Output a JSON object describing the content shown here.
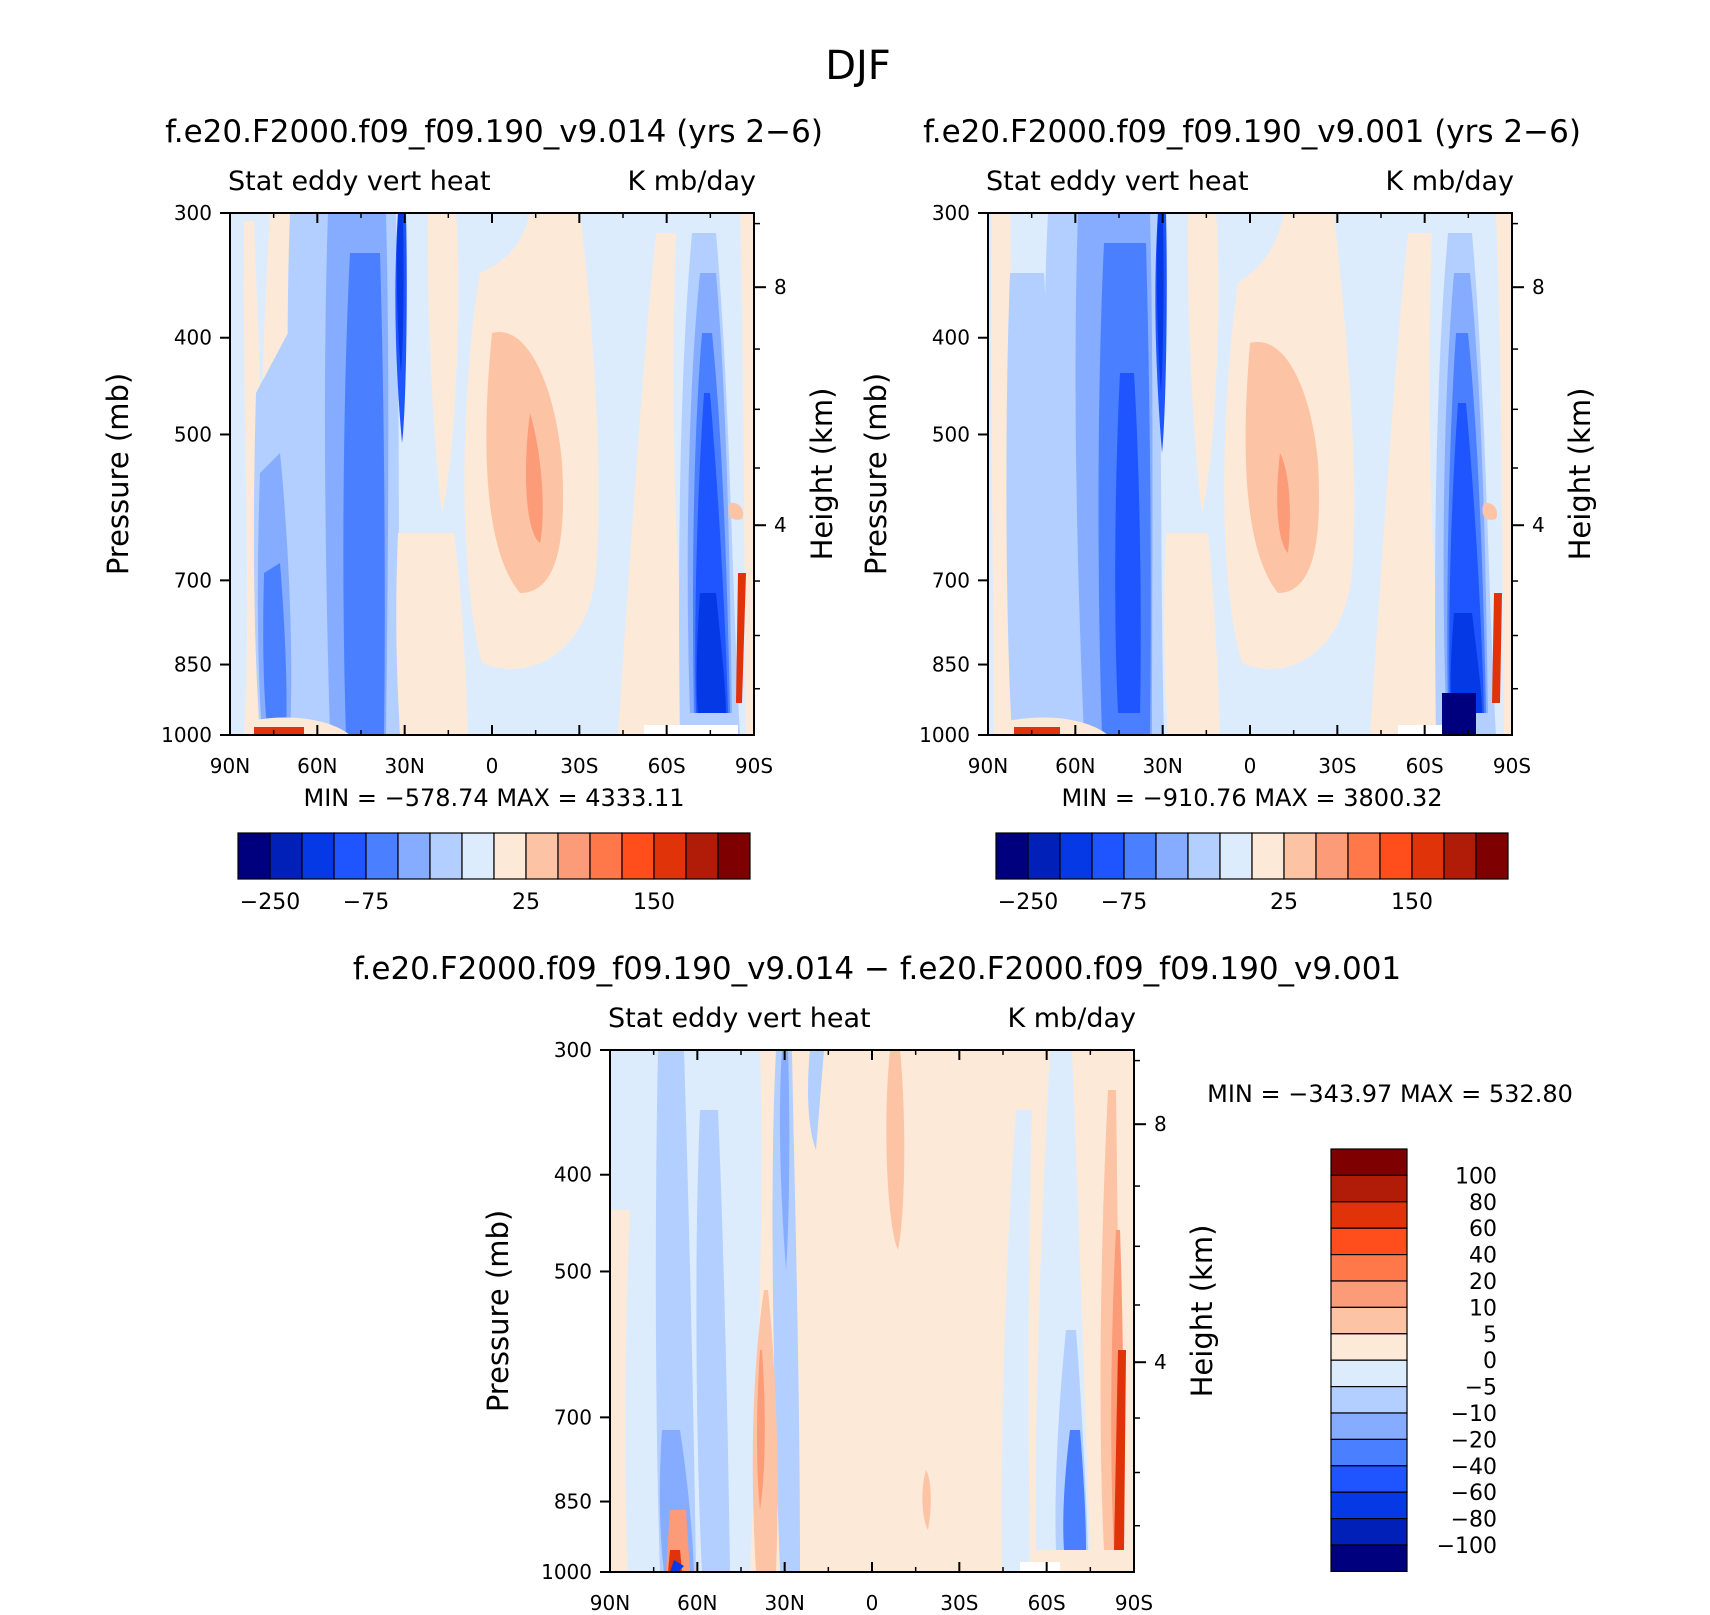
{
  "figure_title": "DJF",
  "colors": {
    "abs_colorbar": [
      "#00007f",
      "#0020b8",
      "#0539e6",
      "#1f55ff",
      "#4a80ff",
      "#86acff",
      "#b3cfff",
      "#ddecfc",
      "#fde9d8",
      "#fcc4a5",
      "#fb9b78",
      "#ff784a",
      "#ff4d1c",
      "#e1330a",
      "#b01c08",
      "#7f0000"
    ],
    "diff_colorbar": [
      "#00007f",
      "#0020b8",
      "#0539e6",
      "#1f55ff",
      "#4a80ff",
      "#86acff",
      "#b3cfff",
      "#ddecfc",
      "#fde9d8",
      "#fcc4a5",
      "#fb9b78",
      "#ff784a",
      "#ff4d1c",
      "#e1330a",
      "#b01c08",
      "#7f0000"
    ]
  },
  "panels": [
    {
      "id": "test",
      "title": "f.e20.F2000.f09_f09.190_v9.014 (yrs 2−6)",
      "left_label": "Stat eddy vert heat",
      "right_label": "K mb/day",
      "ylabel_left": "Pressure (mb)",
      "ylabel_right": "Height (km)",
      "minmax": "MIN = −578.74   MAX = 4333.11",
      "colorbar_labels": [
        "−250",
        "−75",
        "25",
        "150"
      ]
    },
    {
      "id": "control",
      "title": "f.e20.F2000.f09_f09.190_v9.001 (yrs 2−6)",
      "left_label": "Stat eddy vert heat",
      "right_label": "K mb/day",
      "ylabel_left": "Pressure (mb)",
      "ylabel_right": "Height (km)",
      "minmax": "MIN = −910.76   MAX = 3800.32",
      "colorbar_labels": [
        "−250",
        "−75",
        "25",
        "150"
      ]
    },
    {
      "id": "diff",
      "title": "f.e20.F2000.f09_f09.190_v9.014 − f.e20.F2000.f09_f09.190_v9.001",
      "left_label": "Stat eddy vert heat",
      "right_label": "K mb/day",
      "ylabel_left": "Pressure (mb)",
      "ylabel_right": "Height (km)",
      "minmax": "MIN = −343.97   MAX = 532.80",
      "colorbar_labels": [
        "100",
        "80",
        "60",
        "40",
        "20",
        "10",
        "5",
        "0",
        "−5",
        "−10",
        "−20",
        "−40",
        "−60",
        "−80",
        "−100"
      ]
    }
  ],
  "chart_data": [
    {
      "type": "heatmap",
      "title": "f.e20.F2000.f09_f09.190_v9.014 (yrs 2−6)",
      "x_ticks": [
        "90N",
        "60N",
        "30N",
        "0",
        "30S",
        "60S",
        "90S"
      ],
      "y_ticks": [
        "300",
        "400",
        "500",
        "700",
        "850",
        "1000"
      ],
      "y2_ticks": [
        "8",
        "4"
      ],
      "ylim": [
        1000,
        300
      ],
      "y_scale": "log",
      "zmin": -578.74,
      "zmax": 4333.11,
      "contour_levels": [
        -250,
        -200,
        -150,
        -100,
        -75,
        -50,
        -25,
        0,
        25,
        50,
        75,
        100,
        125,
        150,
        200
      ],
      "structure": [
        {
          "lat_range": [
            70,
            30
          ],
          "sign": "negative",
          "level": -75
        },
        {
          "lat_range": [
            32,
            28
          ],
          "sign": "negative",
          "level": -200,
          "p_range": [
            300,
            500
          ]
        },
        {
          "lat_range": [
            5,
            -20
          ],
          "sign": "positive",
          "level": 50
        },
        {
          "lat_range": [
            -70,
            -82
          ],
          "sign": "negative",
          "level": -200,
          "p_range": [
            500,
            1000
          ]
        },
        {
          "lat_range": [
            -82,
            -88
          ],
          "sign": "positive",
          "level": 200,
          "p_range": [
            700,
            1000
          ]
        }
      ]
    },
    {
      "type": "heatmap",
      "title": "f.e20.F2000.f09_f09.190_v9.001 (yrs 2−6)",
      "x_ticks": [
        "90N",
        "60N",
        "30N",
        "0",
        "30S",
        "60S",
        "90S"
      ],
      "y_ticks": [
        "300",
        "400",
        "500",
        "700",
        "850",
        "1000"
      ],
      "y2_ticks": [
        "8",
        "4"
      ],
      "ylim": [
        1000,
        300
      ],
      "y_scale": "log",
      "zmin": -910.76,
      "zmax": 3800.32,
      "contour_levels": [
        -250,
        -200,
        -150,
        -100,
        -75,
        -50,
        -25,
        0,
        25,
        50,
        75,
        100,
        125,
        150,
        200
      ],
      "structure": [
        {
          "lat_range": [
            70,
            30
          ],
          "sign": "negative",
          "level": -75
        },
        {
          "lat_range": [
            32,
            28
          ],
          "sign": "negative",
          "level": -200,
          "p_range": [
            300,
            500
          ]
        },
        {
          "lat_range": [
            5,
            -20
          ],
          "sign": "positive",
          "level": 50
        },
        {
          "lat_range": [
            -70,
            -82
          ],
          "sign": "negative",
          "level": -200,
          "p_range": [
            500,
            1000
          ]
        },
        {
          "lat_range": [
            -82,
            -88
          ],
          "sign": "positive",
          "level": 200,
          "p_range": [
            700,
            1000
          ]
        }
      ]
    },
    {
      "type": "heatmap",
      "title": "f.e20.F2000.f09_f09.190_v9.014 − f.e20.F2000.f09_f09.190_v9.001",
      "x_ticks": [
        "90N",
        "60N",
        "30N",
        "0",
        "30S",
        "60S",
        "90S"
      ],
      "y_ticks": [
        "300",
        "400",
        "500",
        "700",
        "850",
        "1000"
      ],
      "y2_ticks": [
        "8",
        "4"
      ],
      "ylim": [
        1000,
        300
      ],
      "y_scale": "log",
      "zmin": -343.97,
      "zmax": 532.8,
      "contour_levels": [
        -100,
        -80,
        -60,
        -40,
        -20,
        -10,
        -5,
        0,
        5,
        10,
        20,
        40,
        60,
        80,
        100
      ],
      "structure": [
        {
          "lat_range": [
            90,
            30
          ],
          "sign": "negative",
          "level": -10
        },
        {
          "lat_range": [
            30,
            -70
          ],
          "sign": "positive",
          "level": 5
        },
        {
          "lat_range": [
            -75,
            -88
          ],
          "sign": "negative",
          "level": -40,
          "p_range": [
            700,
            1000
          ]
        },
        {
          "lat_range": [
            -88,
            -90
          ],
          "sign": "positive",
          "level": 60,
          "p_range": [
            500,
            1000
          ]
        }
      ]
    }
  ]
}
